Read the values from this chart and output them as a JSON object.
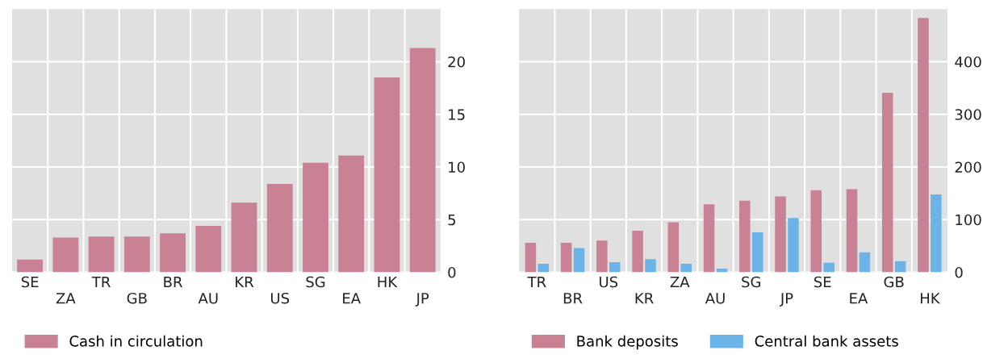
{
  "chart_data": [
    {
      "type": "bar",
      "categories": [
        "SE",
        "ZA",
        "TR",
        "GB",
        "BR",
        "AU",
        "KR",
        "US",
        "SG",
        "EA",
        "HK",
        "JP"
      ],
      "series": [
        {
          "name": "Cash in circulation",
          "color": "#c98294",
          "values": [
            1.2,
            3.3,
            3.4,
            3.4,
            3.7,
            4.4,
            6.6,
            8.4,
            10.4,
            11.1,
            18.5,
            21.3
          ]
        }
      ],
      "ylim": [
        0,
        25
      ],
      "yticks": [
        0,
        5,
        10,
        15,
        20
      ],
      "grid": true,
      "legend": "bottom left"
    },
    {
      "type": "bar",
      "categories": [
        "TR",
        "BR",
        "US",
        "KR",
        "ZA",
        "AU",
        "SG",
        "JP",
        "SE",
        "EA",
        "GB",
        "HK"
      ],
      "series": [
        {
          "name": "Bank deposits",
          "color": "#c98294",
          "values": [
            56,
            56,
            60,
            79,
            95,
            129,
            136,
            144,
            156,
            158,
            341,
            483
          ]
        },
        {
          "name": "Central bank assets",
          "color": "#6cb4e8",
          "values": [
            16,
            46,
            19,
            25,
            16,
            7,
            76,
            103,
            18,
            38,
            21,
            148
          ]
        }
      ],
      "ylim": [
        0,
        500
      ],
      "yticks": [
        0,
        100,
        200,
        300,
        400
      ],
      "grid": true,
      "legend": "bottom left"
    }
  ]
}
